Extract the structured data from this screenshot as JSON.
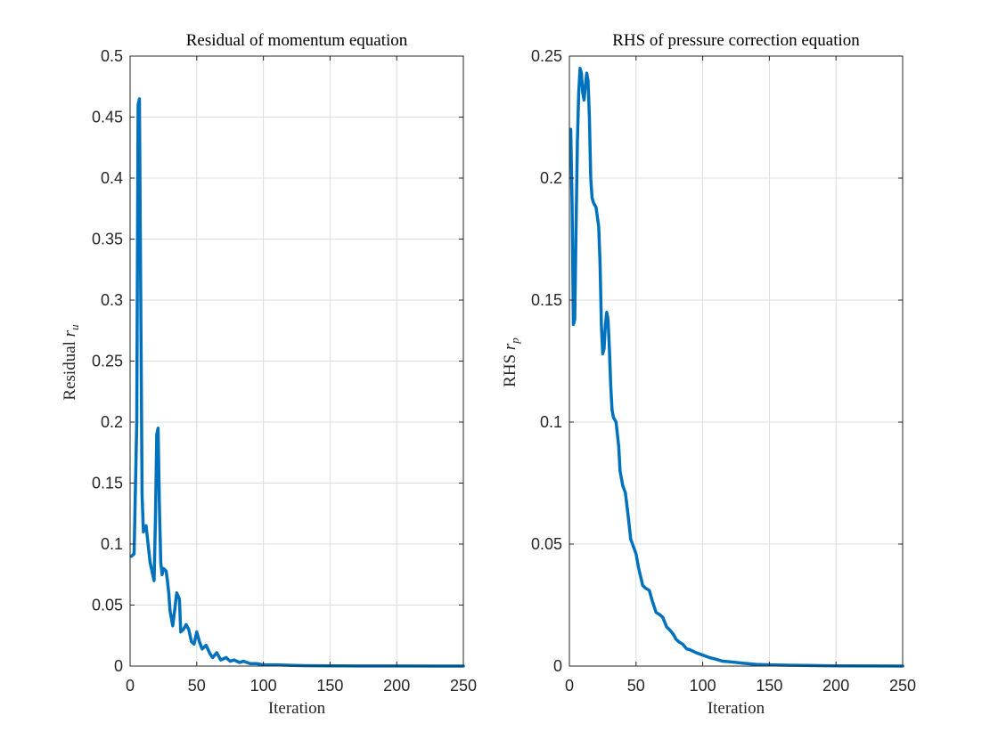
{
  "chart_data": [
    {
      "type": "line",
      "title": "Residual of momentum equation",
      "xlabel": "Iteration",
      "ylabel_text": "Residual ",
      "ylabel_symbol": "r",
      "ylabel_subscript": "u",
      "xlim": [
        0,
        250
      ],
      "ylim": [
        0,
        0.5
      ],
      "xticks": [
        0,
        50,
        100,
        150,
        200,
        250
      ],
      "yticks": [
        0,
        0.05,
        0.1,
        0.15,
        0.2,
        0.25,
        0.3,
        0.35,
        0.4,
        0.45,
        0.5
      ],
      "xtick_labels": [
        "0",
        "50",
        "100",
        "150",
        "200",
        "250"
      ],
      "ytick_labels": [
        "0",
        "0.05",
        "0.1",
        "0.15",
        "0.2",
        "0.25",
        "0.3",
        "0.35",
        "0.4",
        "0.45",
        "0.5"
      ],
      "grid": true,
      "line_color": "#0072BD",
      "x": [
        1,
        3,
        5,
        6,
        7,
        8,
        9,
        10,
        12,
        13,
        15,
        18,
        19,
        20,
        21,
        22,
        23,
        24,
        25,
        27,
        28,
        29,
        30,
        32,
        35,
        37,
        38,
        40,
        42,
        44,
        46,
        48,
        50,
        52,
        54,
        57,
        60,
        62,
        65,
        68,
        72,
        75,
        78,
        82,
        85,
        90,
        95,
        100,
        110,
        120,
        130,
        150,
        170,
        200,
        230,
        250
      ],
      "y": [
        0.09,
        0.092,
        0.2,
        0.46,
        0.465,
        0.3,
        0.14,
        0.11,
        0.115,
        0.105,
        0.085,
        0.07,
        0.12,
        0.19,
        0.195,
        0.13,
        0.085,
        0.075,
        0.08,
        0.078,
        0.07,
        0.06,
        0.045,
        0.033,
        0.06,
        0.055,
        0.028,
        0.03,
        0.034,
        0.03,
        0.02,
        0.018,
        0.028,
        0.02,
        0.014,
        0.017,
        0.01,
        0.007,
        0.011,
        0.005,
        0.007,
        0.004,
        0.005,
        0.003,
        0.004,
        0.002,
        0.002,
        0.001,
        0.001,
        0.0006,
        0.0004,
        0.0002,
        0.0001,
        5e-05,
        2e-05,
        1e-05
      ]
    },
    {
      "type": "line",
      "title": "RHS of pressure correction equation",
      "xlabel": "Iteration",
      "ylabel_text": "RHS ",
      "ylabel_symbol": "r",
      "ylabel_subscript": "p",
      "xlim": [
        0,
        250
      ],
      "ylim": [
        0,
        0.25
      ],
      "xticks": [
        0,
        50,
        100,
        150,
        200,
        250
      ],
      "yticks": [
        0,
        0.05,
        0.1,
        0.15,
        0.2,
        0.25
      ],
      "xtick_labels": [
        "0",
        "50",
        "100",
        "150",
        "200",
        "250"
      ],
      "ytick_labels": [
        "0",
        "0.05",
        "0.1",
        "0.15",
        "0.2",
        "0.25"
      ],
      "grid": true,
      "line_color": "#0072BD",
      "x": [
        1,
        2,
        3,
        4,
        5,
        6,
        7,
        8,
        9,
        10,
        11,
        12,
        13,
        14,
        15,
        16,
        17,
        18,
        20,
        22,
        23,
        24,
        25,
        26,
        27,
        28,
        29,
        30,
        31,
        32,
        33,
        34,
        35,
        37,
        38,
        40,
        42,
        44,
        46,
        48,
        50,
        52,
        55,
        57,
        60,
        62,
        65,
        68,
        70,
        73,
        75,
        78,
        80,
        82,
        85,
        88,
        90,
        95,
        100,
        105,
        110,
        115,
        120,
        130,
        140,
        150,
        170,
        200,
        230,
        250
      ],
      "y": [
        0.22,
        0.19,
        0.14,
        0.142,
        0.18,
        0.215,
        0.235,
        0.245,
        0.243,
        0.235,
        0.232,
        0.238,
        0.243,
        0.24,
        0.225,
        0.2,
        0.192,
        0.19,
        0.188,
        0.18,
        0.165,
        0.14,
        0.128,
        0.13,
        0.14,
        0.145,
        0.142,
        0.13,
        0.115,
        0.105,
        0.102,
        0.101,
        0.1,
        0.09,
        0.08,
        0.074,
        0.071,
        0.062,
        0.052,
        0.049,
        0.046,
        0.04,
        0.033,
        0.032,
        0.031,
        0.027,
        0.022,
        0.021,
        0.02,
        0.016,
        0.015,
        0.013,
        0.011,
        0.01,
        0.009,
        0.007,
        0.0068,
        0.0055,
        0.0045,
        0.0035,
        0.0028,
        0.002,
        0.0018,
        0.0012,
        0.0007,
        0.0005,
        0.0003,
        0.0001,
        5e-05,
        2e-05
      ]
    }
  ]
}
